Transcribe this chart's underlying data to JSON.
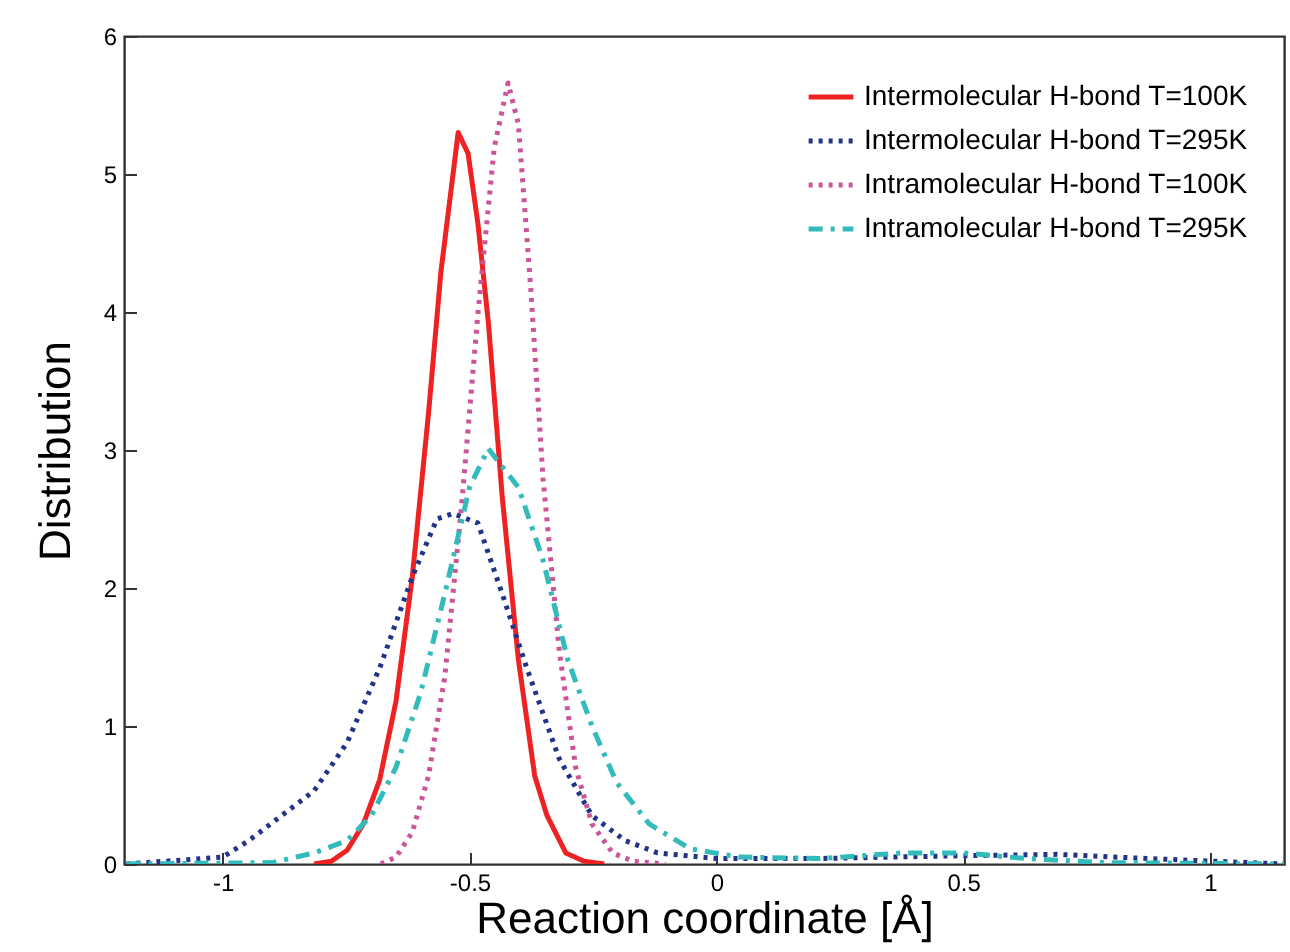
{
  "chart_data": {
    "type": "line",
    "xlabel": "Reaction coordinate [Å]",
    "ylabel": "Distribution",
    "xlim": [
      -1.2,
      1.15
    ],
    "ylim": [
      0,
      6
    ],
    "xticks": [
      -1,
      -0.5,
      0,
      0.5,
      1
    ],
    "yticks": [
      0,
      1,
      2,
      3,
      4,
      5,
      6
    ],
    "grid": false,
    "legend": "top right",
    "marker": "none",
    "series": [
      {
        "name": "Intermolecular H-bond T=100K",
        "color": "#ee2222",
        "line_style": "solid",
        "x": [
          -0.815,
          -0.78,
          -0.748,
          -0.715,
          -0.682,
          -0.649,
          -0.616,
          -0.583,
          -0.558,
          -0.523,
          -0.503,
          -0.483,
          -0.462,
          -0.434,
          -0.401,
          -0.368,
          -0.343,
          -0.305,
          -0.268,
          -0.227
        ],
        "values": [
          0,
          0.02,
          0.1,
          0.29,
          0.61,
          1.18,
          2.08,
          3.27,
          4.29,
          5.3,
          5.15,
          4.64,
          3.93,
          2.67,
          1.48,
          0.64,
          0.35,
          0.08,
          0.02,
          0
        ]
      },
      {
        "name": "Intermolecular H-bond T=295K",
        "color": "#223388",
        "line_style": "dotted",
        "x": [
          -1.195,
          -1,
          -0.947,
          -0.881,
          -0.815,
          -0.748,
          -0.682,
          -0.616,
          -0.566,
          -0.533,
          -0.483,
          -0.434,
          -0.384,
          -0.318,
          -0.252,
          -0.185,
          -0.119,
          0,
          0.21,
          0.5,
          0.69,
          0.87,
          1.15
        ],
        "values": [
          0,
          0.05,
          0.17,
          0.35,
          0.53,
          0.88,
          1.42,
          2.08,
          2.5,
          2.54,
          2.47,
          1.96,
          1.42,
          0.76,
          0.35,
          0.17,
          0.08,
          0.04,
          0.04,
          0.06,
          0.07,
          0.04,
          0
        ]
      },
      {
        "name": "Intramolecular H-bond T=100K",
        "color": "#cc5599",
        "line_style": "dotted",
        "x": [
          -0.68,
          -0.649,
          -0.616,
          -0.583,
          -0.55,
          -0.517,
          -0.483,
          -0.45,
          -0.422,
          -0.401,
          -0.376,
          -0.351,
          -0.318,
          -0.285,
          -0.252,
          -0.21,
          -0.169,
          -0.103
        ],
        "values": [
          0,
          0.05,
          0.23,
          0.64,
          1.36,
          2.56,
          3.99,
          5.19,
          5.66,
          5.36,
          4.17,
          2.79,
          1.54,
          0.7,
          0.29,
          0.08,
          0.02,
          0
        ]
      },
      {
        "name": "Intramolecular H-bond T=295K",
        "color": "#33bbbb",
        "line_style": "dashed",
        "x": [
          -1.195,
          -0.9,
          -0.815,
          -0.748,
          -0.699,
          -0.649,
          -0.599,
          -0.55,
          -0.5,
          -0.462,
          -0.434,
          -0.401,
          -0.351,
          -0.301,
          -0.252,
          -0.202,
          -0.136,
          -0.053,
          0.046,
          0.21,
          0.377,
          0.5,
          0.626,
          0.79,
          1.15
        ],
        "values": [
          0,
          0.01,
          0.08,
          0.17,
          0.35,
          0.7,
          1.24,
          1.96,
          2.73,
          3.01,
          2.88,
          2.73,
          2.2,
          1.48,
          1.0,
          0.59,
          0.29,
          0.11,
          0.05,
          0.04,
          0.08,
          0.08,
          0.04,
          0.01,
          0
        ]
      }
    ]
  }
}
